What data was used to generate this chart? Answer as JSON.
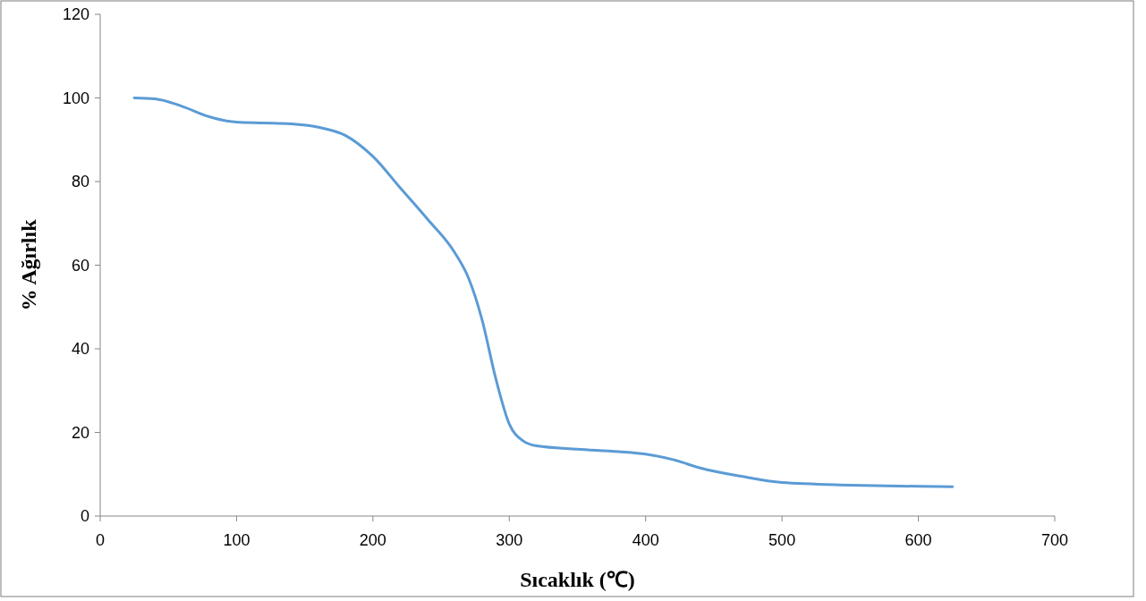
{
  "chart_data": {
    "type": "line",
    "xlabel": "Sıcaklık (℃)",
    "ylabel": "% Ağırlık",
    "x": [
      25,
      40,
      60,
      80,
      100,
      120,
      140,
      160,
      180,
      200,
      220,
      240,
      260,
      270,
      280,
      290,
      300,
      310,
      320,
      350,
      380,
      400,
      420,
      440,
      470,
      500,
      550,
      600,
      625
    ],
    "series": [
      {
        "color": "#5b9bd5",
        "values": [
          100,
          99.8,
          98,
          95.5,
          94.2,
          94,
          93.8,
          93,
          91,
          86,
          78.5,
          71,
          63,
          57,
          47,
          33,
          22,
          18,
          16.8,
          16,
          15.4,
          14.8,
          13.5,
          11.5,
          9.5,
          8,
          7.4,
          7.1,
          7
        ]
      }
    ],
    "xlim": [
      0,
      700
    ],
    "xticks": [
      0,
      100,
      200,
      300,
      400,
      500,
      600,
      700
    ],
    "ylim": [
      0,
      120
    ],
    "yticks": [
      0,
      20,
      40,
      60,
      80,
      100,
      120
    ],
    "grid": false,
    "marker": "none",
    "line_style": "solid"
  }
}
